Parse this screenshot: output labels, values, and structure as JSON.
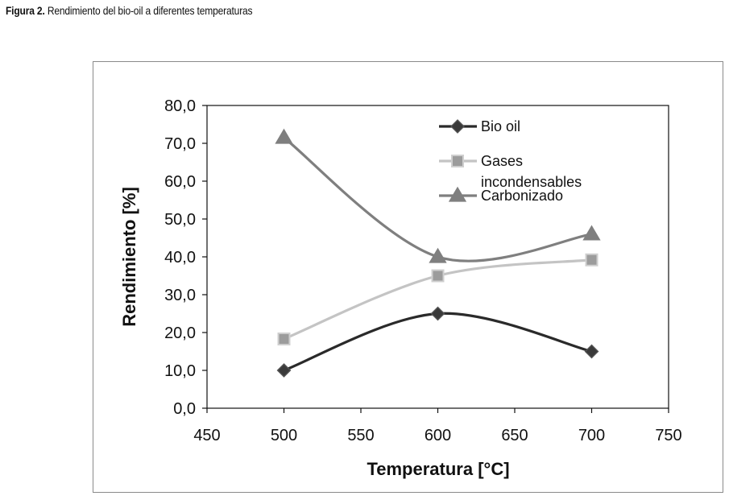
{
  "caption": {
    "label": "Figura 2.",
    "text": "Rendimiento del bio-oil a diferentes temperaturas"
  },
  "chart_data": {
    "type": "line",
    "title": "",
    "xlabel": "Temperatura [°C]",
    "ylabel": "Rendimiento [%]",
    "xlim": [
      450,
      750
    ],
    "ylim": [
      0,
      80
    ],
    "x_ticks": [
      "450",
      "500",
      "550",
      "600",
      "650",
      "700",
      "750"
    ],
    "y_ticks": [
      "0,0",
      "10,0",
      "20,0",
      "30,0",
      "40,0",
      "50,0",
      "60,0",
      "70,0",
      "80,0"
    ],
    "x": [
      500,
      600,
      700
    ],
    "grid": false,
    "legend_position": "top-right inside plot",
    "series": [
      {
        "name": "Bio oil",
        "values": [
          10.0,
          25.0,
          15.0
        ],
        "color": "#2a2a2a",
        "marker": "diamond",
        "marker_fill": "#3a3a3a"
      },
      {
        "name": "Gases incondensables",
        "legend_lines": [
          "Gases",
          "incondensables"
        ],
        "values": [
          18.3,
          35.0,
          39.2
        ],
        "color": "#c4c4c4",
        "marker": "square",
        "marker_fill": "#9c9c9c"
      },
      {
        "name": "Carbonizado",
        "values": [
          71.5,
          40.0,
          46.0
        ],
        "color": "#7f7f7f",
        "marker": "triangle",
        "marker_fill": "#7f7f7f"
      }
    ]
  }
}
